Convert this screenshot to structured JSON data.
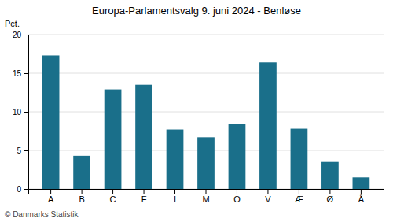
{
  "chart_data": {
    "type": "bar",
    "title": "Europa-Parlamentsvalg 9. juni 2024 - Benløse",
    "ylabel": "Pct.",
    "annotations": [
      "© Danmarks Statistik"
    ],
    "categories": [
      "A",
      "B",
      "C",
      "F",
      "I",
      "M",
      "O",
      "V",
      "Æ",
      "Ø",
      "Å"
    ],
    "values": [
      17.3,
      4.3,
      12.9,
      13.5,
      7.7,
      6.7,
      8.4,
      16.4,
      7.8,
      3.5,
      1.5
    ],
    "color": "#1a6f8a",
    "ylim": [
      0,
      20
    ],
    "yticks": [
      0,
      5,
      10,
      15,
      20
    ],
    "grid": true
  }
}
